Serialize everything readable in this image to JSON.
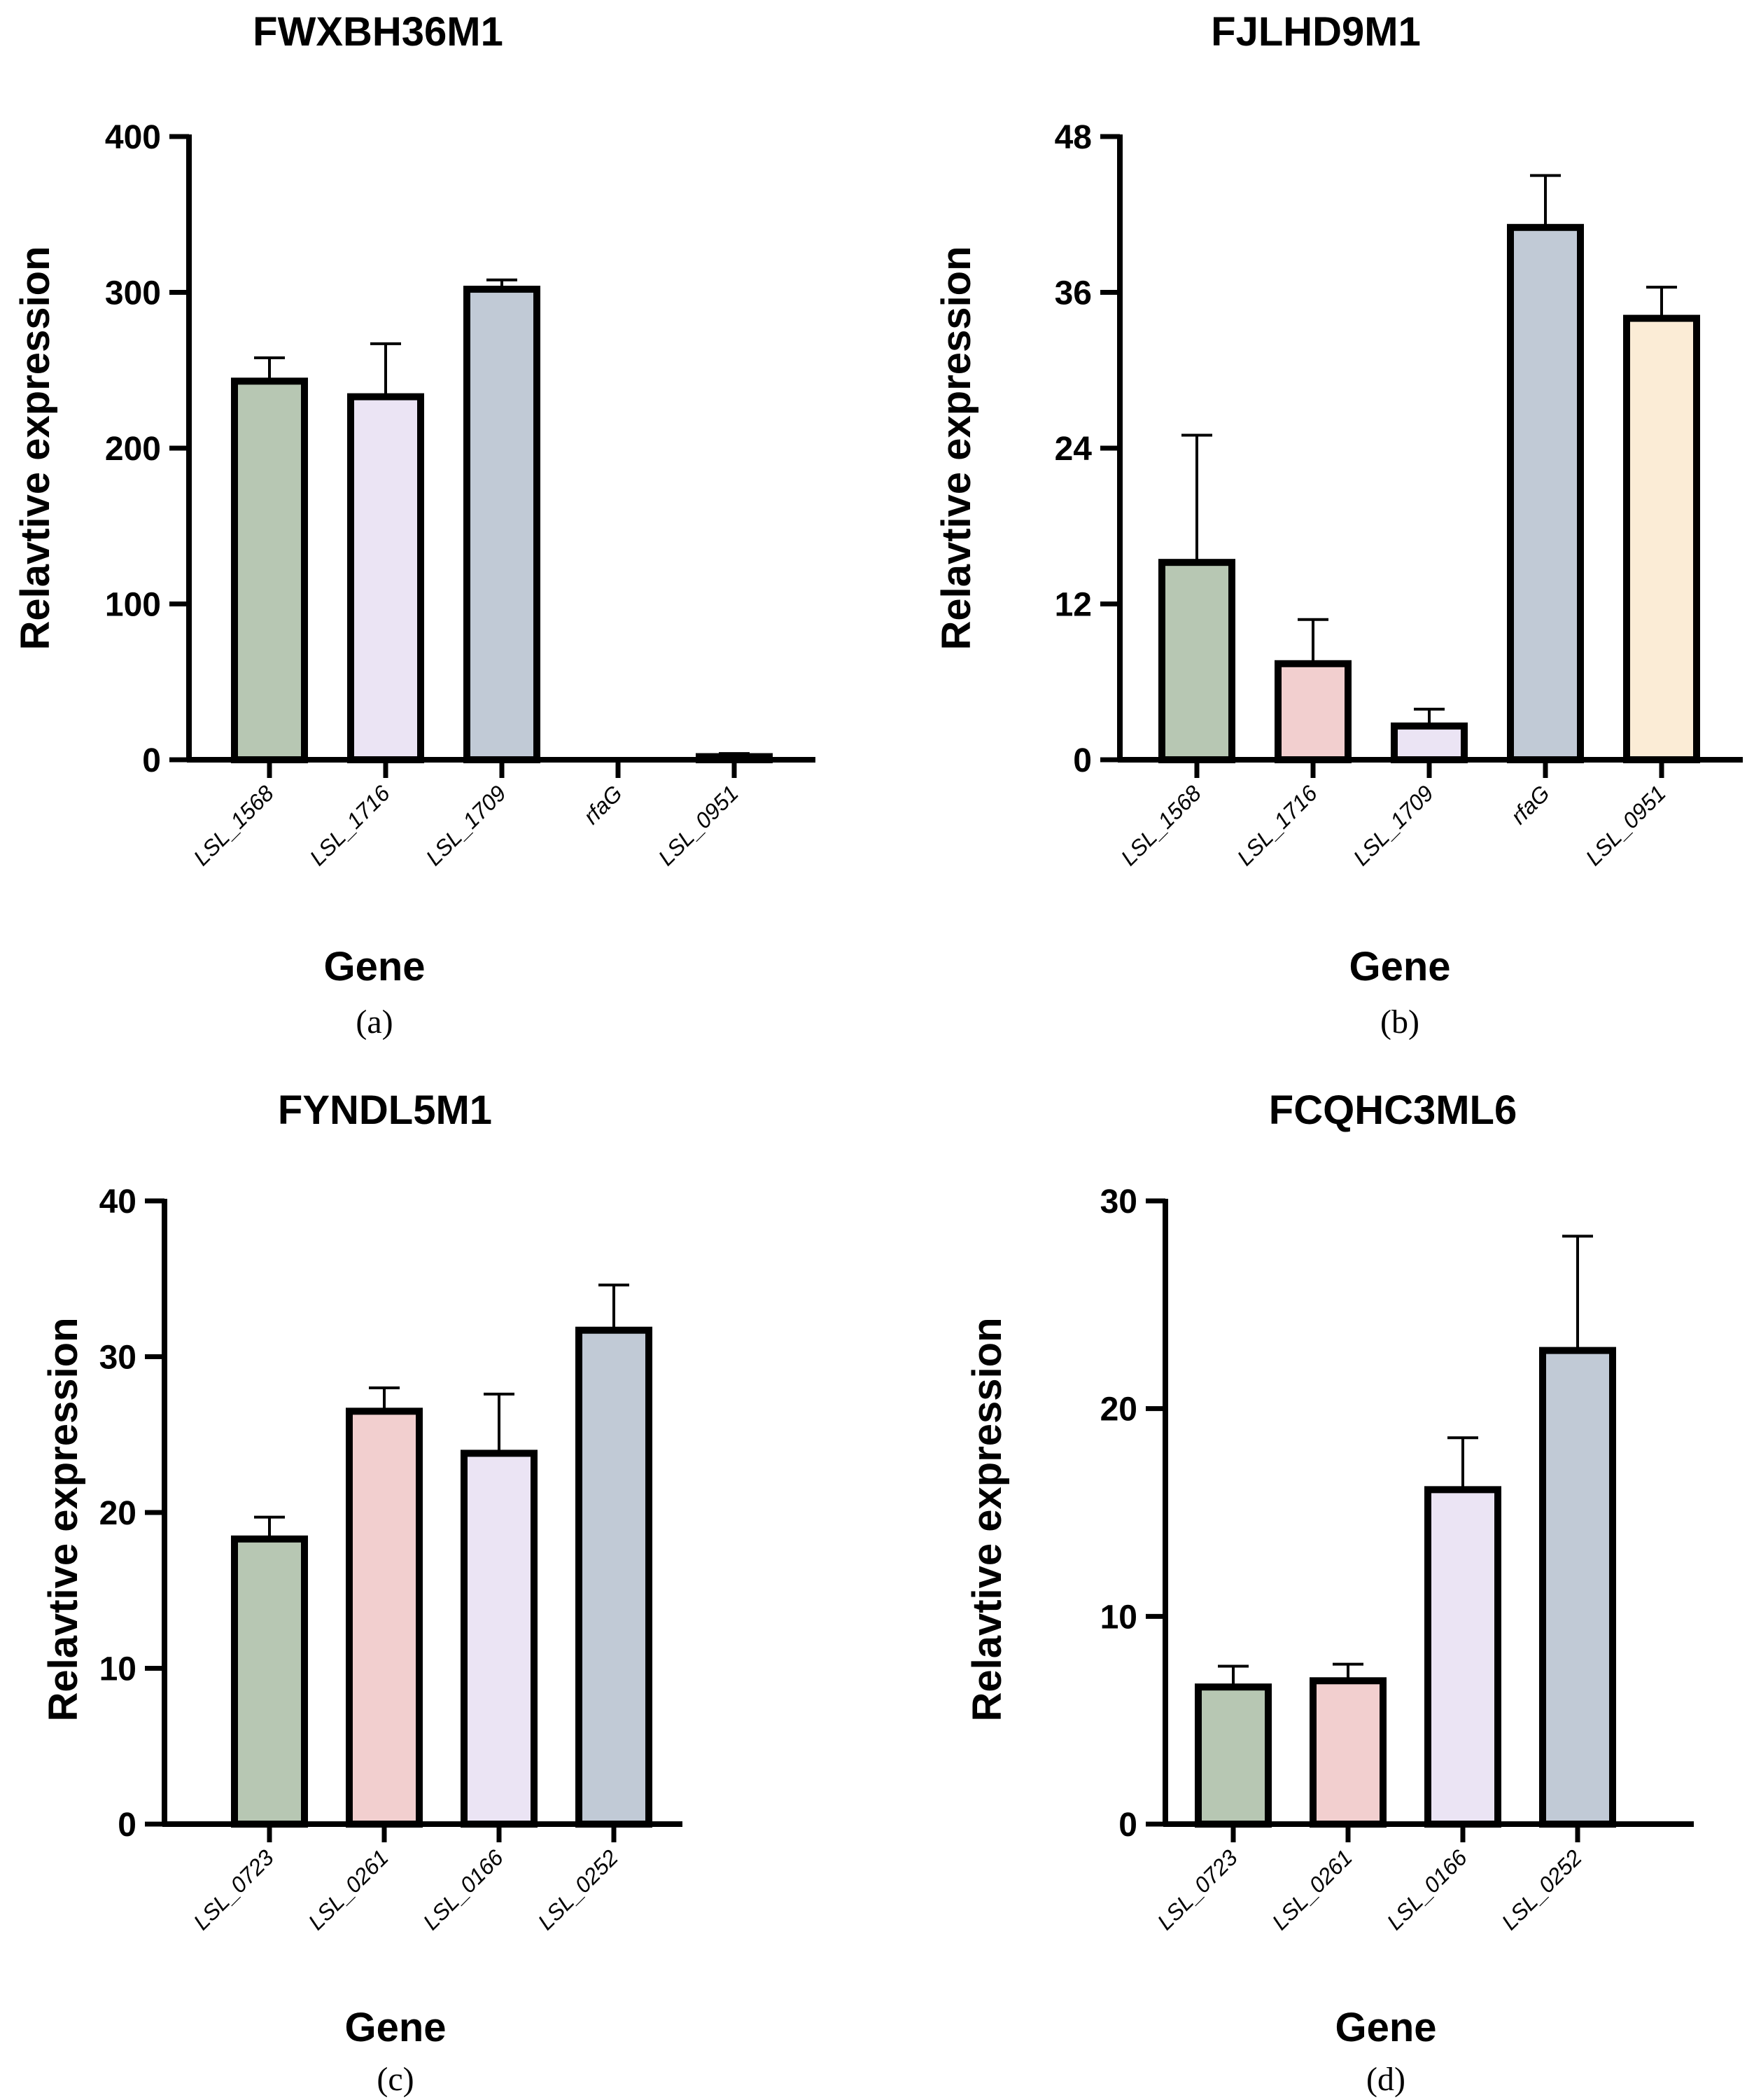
{
  "chart_data": [
    {
      "type": "bar",
      "panel": "(a)",
      "title": "FWXBH36M1",
      "xlabel": "Gene",
      "ylabel": "Relavtive expression",
      "ylim": [
        0,
        400
      ],
      "yticks": [
        0,
        100,
        200,
        300,
        400
      ],
      "categories": [
        "LSL_1568",
        "LSL_1716",
        "LSL_1709",
        "rfaG",
        "LSL_0951"
      ],
      "values": [
        243,
        233,
        302,
        0.2,
        2
      ],
      "errors": [
        15,
        34,
        6,
        0,
        2
      ],
      "colors": [
        "#b7c7b3",
        "#ebe4f4",
        "#c1cad6",
        "#ffffff",
        "#f5f0e8"
      ],
      "grid": false
    },
    {
      "type": "bar",
      "panel": "(b)",
      "title": "FJLHD9M1",
      "xlabel": "Gene",
      "ylabel": "Relavtive expression",
      "ylim": [
        0,
        48
      ],
      "yticks": [
        0,
        12,
        24,
        36,
        48
      ],
      "categories": [
        "LSL_1568",
        "LSL_1716",
        "LSL_1709",
        "rfaG",
        "LSL_0951"
      ],
      "values": [
        15.2,
        7.4,
        2.6,
        41,
        34
      ],
      "errors": [
        9.8,
        3.4,
        1.3,
        4,
        2.4
      ],
      "colors": [
        "#b7c7b3",
        "#f2cfcf",
        "#ebe4f4",
        "#c1cad6",
        "#fbecd6"
      ],
      "grid": false
    },
    {
      "type": "bar",
      "panel": "(c)",
      "title": "FYNDL5M1",
      "xlabel": "Gene",
      "ylabel": "Relavtive expression",
      "ylim": [
        0,
        40
      ],
      "yticks": [
        0,
        10,
        20,
        30,
        40
      ],
      "categories": [
        "LSL_0723",
        "LSL_0261",
        "LSL_0166",
        "LSL_0252"
      ],
      "values": [
        18.3,
        26.5,
        23.8,
        31.7
      ],
      "errors": [
        1.4,
        1.5,
        3.8,
        2.9
      ],
      "colors": [
        "#b7c7b3",
        "#f2cfcf",
        "#ebe4f4",
        "#c1cad6"
      ],
      "grid": false
    },
    {
      "type": "bar",
      "panel": "(d)",
      "title": "FCQHC3ML6",
      "xlabel": "Gene",
      "ylabel": "Relavtive expression",
      "ylim": [
        0,
        30
      ],
      "yticks": [
        0,
        10,
        20,
        30
      ],
      "categories": [
        "LSL_0723",
        "LSL_0261",
        "LSL_0166",
        "LSL_0252"
      ],
      "values": [
        6.6,
        6.9,
        16.1,
        22.8
      ],
      "errors": [
        1.0,
        0.8,
        2.5,
        5.5
      ],
      "colors": [
        "#b7c7b3",
        "#f2cfcf",
        "#ebe4f4",
        "#c1cad6"
      ],
      "grid": false
    }
  ]
}
